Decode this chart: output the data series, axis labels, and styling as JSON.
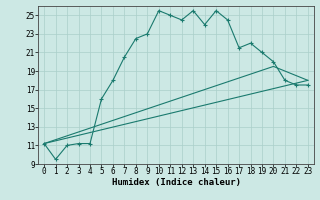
{
  "xlabel": "Humidex (Indice chaleur)",
  "xlim": [
    -0.5,
    23.5
  ],
  "ylim": [
    9,
    26
  ],
  "yticks": [
    9,
    11,
    13,
    15,
    17,
    19,
    21,
    23,
    25
  ],
  "xticks": [
    0,
    1,
    2,
    3,
    4,
    5,
    6,
    7,
    8,
    9,
    10,
    11,
    12,
    13,
    14,
    15,
    16,
    17,
    18,
    19,
    20,
    21,
    22,
    23
  ],
  "background_color": "#cce8e4",
  "grid_color": "#aacfca",
  "line_color": "#1a7a6e",
  "line1_x": [
    0,
    1,
    2,
    3,
    4,
    5,
    6,
    7,
    8,
    9,
    10,
    11,
    12,
    13,
    14,
    15,
    16,
    17,
    18,
    19,
    20,
    21,
    22,
    23
  ],
  "line1_y": [
    11.2,
    9.5,
    11.0,
    11.2,
    11.2,
    16.0,
    18.0,
    20.5,
    22.5,
    23.0,
    25.5,
    25.0,
    24.5,
    25.5,
    24.0,
    25.5,
    24.5,
    21.5,
    22.0,
    21.0,
    20.0,
    18.0,
    17.5,
    17.5
  ],
  "line2_x": [
    0,
    23
  ],
  "line2_y": [
    11.2,
    18.0
  ],
  "line3_x": [
    0,
    20,
    23
  ],
  "line3_y": [
    11.2,
    19.5,
    18.0
  ],
  "line_width": 0.8,
  "marker_size": 3.5,
  "tick_fontsize": 5.5,
  "xlabel_fontsize": 6.5
}
